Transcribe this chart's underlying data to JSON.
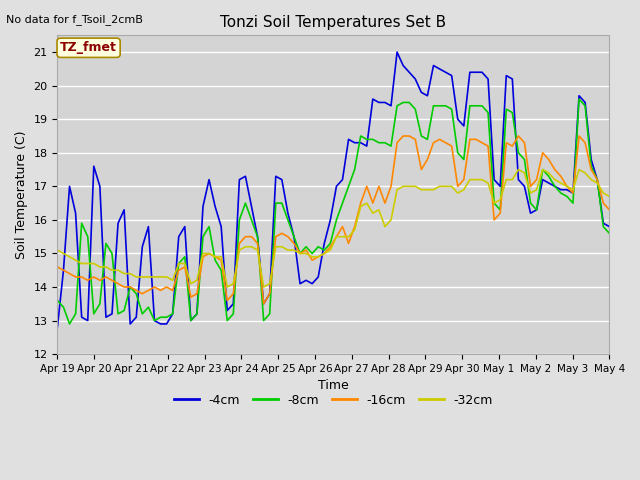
{
  "title": "Tonzi Soil Temperatures Set B",
  "xlabel": "Time",
  "ylabel": "Soil Temperature (C)",
  "no_data_text": "No data for f_Tsoil_2cmB",
  "tz_fmet_label": "TZ_fmet",
  "fig_bg_color": "#e0e0e0",
  "plot_bg_color": "#d4d4d4",
  "ylim": [
    12.0,
    21.5
  ],
  "yticks": [
    12.0,
    13.0,
    14.0,
    15.0,
    16.0,
    17.0,
    18.0,
    19.0,
    20.0,
    21.0
  ],
  "xtick_labels": [
    "Apr 19",
    "Apr 20",
    "Apr 21",
    "Apr 22",
    "Apr 23",
    "Apr 24",
    "Apr 25",
    "Apr 26",
    "Apr 27",
    "Apr 28",
    "Apr 29",
    "Apr 30",
    "May 1",
    "May 2",
    "May 3",
    "May 4"
  ],
  "legend_labels": [
    "-4cm",
    "-8cm",
    "-16cm",
    "-32cm"
  ],
  "line_colors": [
    "#0000dd",
    "#00cc00",
    "#ff8800",
    "#cccc00"
  ],
  "line_width": 1.2,
  "series_4cm": [
    12.8,
    14.5,
    17.0,
    16.2,
    13.1,
    13.0,
    17.6,
    17.0,
    13.1,
    13.2,
    15.9,
    16.3,
    12.9,
    13.1,
    15.2,
    15.8,
    13.0,
    12.9,
    12.9,
    13.2,
    15.5,
    15.8,
    13.0,
    13.2,
    16.4,
    17.2,
    16.4,
    15.8,
    13.3,
    13.5,
    17.2,
    17.3,
    16.4,
    15.5,
    13.5,
    13.8,
    17.3,
    17.2,
    16.2,
    15.5,
    14.1,
    14.2,
    14.1,
    14.3,
    15.3,
    16.0,
    17.0,
    17.2,
    18.4,
    18.3,
    18.3,
    18.2,
    19.6,
    19.5,
    19.5,
    19.4,
    21.0,
    20.6,
    20.4,
    20.2,
    19.8,
    19.7,
    20.6,
    20.5,
    20.4,
    20.3,
    19.0,
    18.8,
    20.4,
    20.4,
    20.4,
    20.2,
    17.2,
    17.0,
    20.3,
    20.2,
    17.2,
    17.0,
    16.2,
    16.3,
    17.2,
    17.1,
    17.0,
    16.9,
    16.9,
    16.8,
    19.7,
    19.5,
    17.8,
    17.2,
    15.9,
    15.8
  ],
  "series_8cm": [
    13.6,
    13.4,
    12.9,
    13.2,
    15.9,
    15.5,
    13.2,
    13.5,
    15.3,
    15.0,
    13.2,
    13.3,
    14.0,
    13.8,
    13.2,
    13.4,
    13.0,
    13.1,
    13.1,
    13.2,
    14.7,
    14.9,
    13.0,
    13.2,
    15.5,
    15.8,
    14.8,
    14.5,
    13.0,
    13.2,
    16.0,
    16.5,
    16.0,
    15.5,
    13.0,
    13.2,
    16.5,
    16.5,
    16.0,
    15.5,
    15.0,
    15.2,
    15.0,
    15.2,
    15.1,
    15.3,
    16.0,
    16.5,
    17.0,
    17.5,
    18.5,
    18.4,
    18.4,
    18.3,
    18.3,
    18.2,
    19.4,
    19.5,
    19.5,
    19.3,
    18.5,
    18.4,
    19.4,
    19.4,
    19.4,
    19.3,
    18.0,
    17.8,
    19.4,
    19.4,
    19.4,
    19.2,
    16.5,
    16.3,
    19.3,
    19.2,
    18.0,
    17.8,
    16.5,
    16.3,
    17.5,
    17.3,
    17.0,
    16.8,
    16.7,
    16.5,
    19.6,
    19.4,
    17.6,
    17.2,
    15.8,
    15.6
  ],
  "series_16cm": [
    14.6,
    14.5,
    14.4,
    14.3,
    14.3,
    14.2,
    14.3,
    14.2,
    14.3,
    14.2,
    14.1,
    14.0,
    14.0,
    13.9,
    13.8,
    13.9,
    14.0,
    13.9,
    14.0,
    13.9,
    14.5,
    14.6,
    13.7,
    13.8,
    14.9,
    15.0,
    14.9,
    14.8,
    13.6,
    13.8,
    15.3,
    15.5,
    15.5,
    15.3,
    13.5,
    13.8,
    15.5,
    15.6,
    15.5,
    15.3,
    15.0,
    15.1,
    14.8,
    14.9,
    15.0,
    15.2,
    15.5,
    15.8,
    15.3,
    15.8,
    16.5,
    17.0,
    16.5,
    17.0,
    16.5,
    17.0,
    18.3,
    18.5,
    18.5,
    18.4,
    17.5,
    17.8,
    18.3,
    18.4,
    18.3,
    18.2,
    17.0,
    17.2,
    18.4,
    18.4,
    18.3,
    18.2,
    16.0,
    16.2,
    18.3,
    18.2,
    18.5,
    18.3,
    17.0,
    17.2,
    18.0,
    17.8,
    17.5,
    17.3,
    17.0,
    16.8,
    18.5,
    18.3,
    17.5,
    17.2,
    16.5,
    16.3
  ],
  "series_32cm": [
    15.1,
    15.0,
    14.9,
    14.8,
    14.7,
    14.7,
    14.7,
    14.6,
    14.6,
    14.5,
    14.5,
    14.4,
    14.4,
    14.3,
    14.3,
    14.3,
    14.3,
    14.3,
    14.3,
    14.2,
    14.7,
    14.7,
    14.1,
    14.2,
    15.0,
    15.0,
    14.9,
    14.9,
    14.0,
    14.1,
    15.1,
    15.2,
    15.2,
    15.1,
    14.0,
    14.1,
    15.2,
    15.2,
    15.1,
    15.1,
    15.0,
    15.0,
    14.9,
    14.9,
    15.0,
    15.1,
    15.5,
    15.5,
    15.5,
    15.7,
    16.4,
    16.5,
    16.2,
    16.3,
    15.8,
    16.0,
    16.9,
    17.0,
    17.0,
    17.0,
    16.9,
    16.9,
    16.9,
    17.0,
    17.0,
    17.0,
    16.8,
    16.9,
    17.2,
    17.2,
    17.2,
    17.1,
    16.5,
    16.6,
    17.2,
    17.2,
    17.5,
    17.4,
    16.8,
    16.9,
    17.5,
    17.4,
    17.2,
    17.1,
    17.0,
    16.9,
    17.5,
    17.4,
    17.2,
    17.1,
    16.8,
    16.7
  ]
}
